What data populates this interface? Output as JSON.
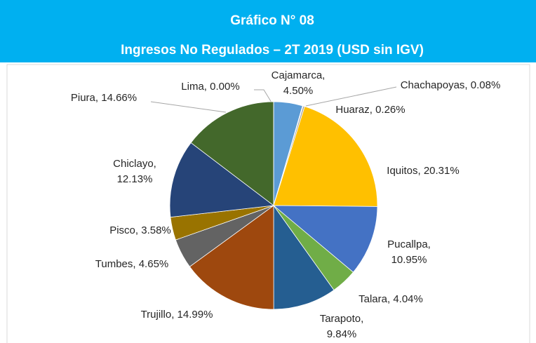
{
  "chart_data": {
    "type": "pie",
    "title": "Gráfico N° 08",
    "subtitle": "Ingresos No Regulados – 2T 2019 (USD sin IGV)",
    "values": [
      4.5,
      0.08,
      0.26,
      20.31,
      10.95,
      4.04,
      9.84,
      14.99,
      4.65,
      3.58,
      12.13,
      14.66,
      0.0
    ],
    "value_labels": [
      "Cajamarca, 4.50%",
      "Chachapoyas, 0.08%",
      "Huaraz, 0.26%",
      "Iquitos, 20.31%",
      "Pucallpa, 10.95%",
      "Talara, 4.04%",
      "Tarapoto, 9.84%",
      "Trujillo, 14.99%",
      "Tumbes, 4.65%",
      "Pisco, 3.58%",
      "Chiclayo, 12.13%",
      "Piura, 14.66%",
      "Lima, 0.00%"
    ],
    "colors": [
      "#5b9bd5",
      "#ed7d31",
      "#a5a5a5",
      "#ffc000",
      "#4472c4",
      "#70ad47",
      "#255e91",
      "#9e480e",
      "#636363",
      "#997300",
      "#264478",
      "#43682b",
      "#698ed0"
    ]
  }
}
